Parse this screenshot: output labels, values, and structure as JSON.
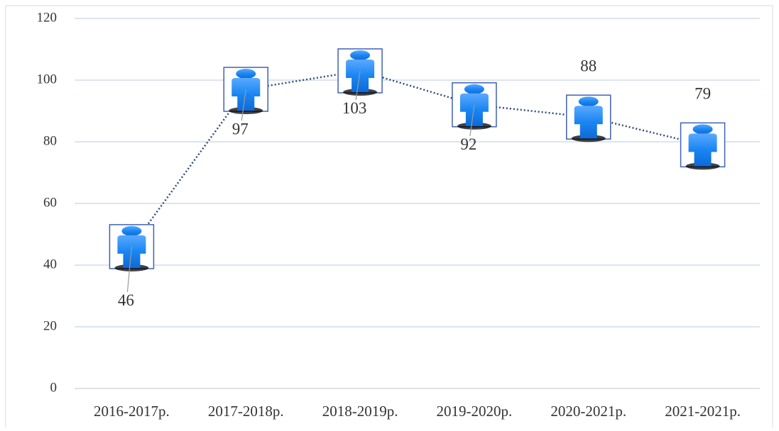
{
  "chart_data": {
    "type": "line",
    "categories": [
      "2016-2017р.",
      "2017-2018р.",
      "2018-2019р.",
      "2019-2020р.",
      "2020-2021р.",
      "2021-2021р."
    ],
    "values": [
      46,
      97,
      103,
      92,
      88,
      79
    ],
    "color": "#2f4b7c",
    "marker_color": "#1a86f2",
    "ylim": [
      0,
      120
    ],
    "yticks": [
      0,
      20,
      40,
      60,
      80,
      100,
      120
    ],
    "grid": true
  }
}
